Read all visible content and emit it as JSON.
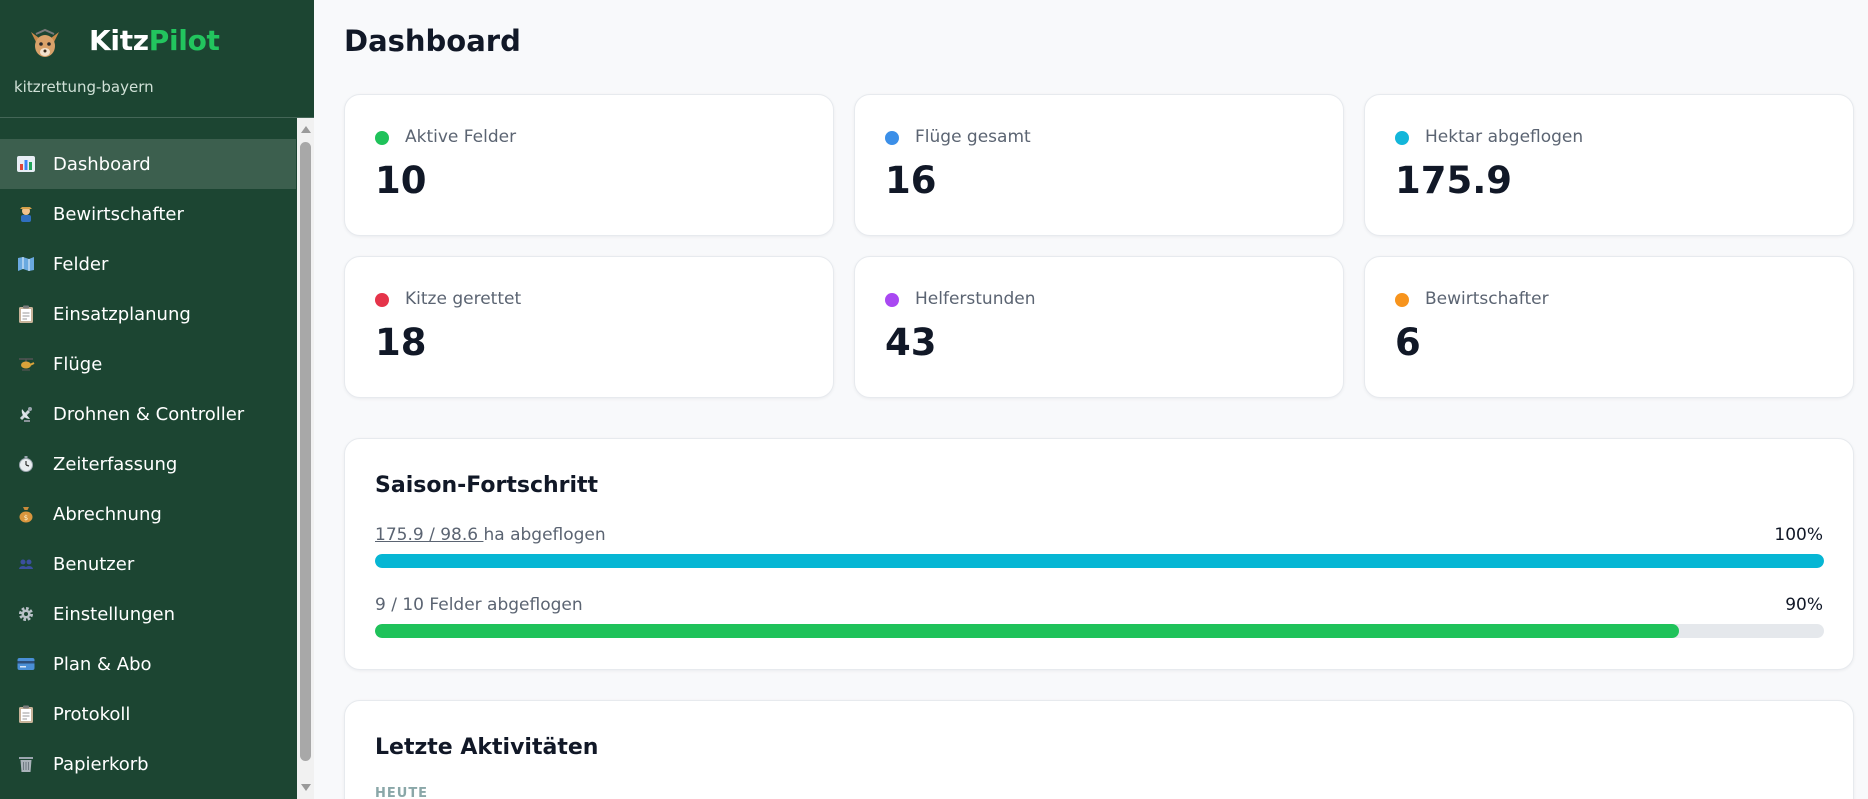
{
  "app": {
    "name_main": "Kitz",
    "name_accent": "Pilot",
    "org": "kitzrettung-bayern"
  },
  "sidebar": {
    "items": [
      {
        "label": "Dashboard",
        "icon": "bar-chart-icon",
        "active": true
      },
      {
        "label": "Bewirtschafter",
        "icon": "farmer-icon"
      },
      {
        "label": "Felder",
        "icon": "map-icon"
      },
      {
        "label": "Einsatzplanung",
        "icon": "clipboard-icon"
      },
      {
        "label": "Flüge",
        "icon": "helicopter-icon"
      },
      {
        "label": "Drohnen & Controller",
        "icon": "satellite-icon"
      },
      {
        "label": "Zeiterfassung",
        "icon": "stopwatch-icon"
      },
      {
        "label": "Abrechnung",
        "icon": "money-bag-icon"
      },
      {
        "label": "Benutzer",
        "icon": "users-icon"
      },
      {
        "label": "Einstellungen",
        "icon": "gear-icon"
      },
      {
        "label": "Plan & Abo",
        "icon": "credit-card-icon"
      },
      {
        "label": "Protokoll",
        "icon": "log-icon"
      },
      {
        "label": "Papierkorb",
        "icon": "trash-icon"
      }
    ]
  },
  "main": {
    "title": "Dashboard",
    "stats": [
      {
        "label": "Aktive Felder",
        "value": "10",
        "color": "#1fc25a"
      },
      {
        "label": "Flüge gesamt",
        "value": "16",
        "color": "#3b8fe8"
      },
      {
        "label": "Hektar abgeflogen",
        "value": "175.9",
        "color": "#13b6da"
      },
      {
        "label": "Kitze gerettet",
        "value": "18",
        "color": "#e5344a"
      },
      {
        "label": "Helferstunden",
        "value": "43",
        "color": "#a948f2"
      },
      {
        "label": "Bewirtschafter",
        "value": "6",
        "color": "#f7941d"
      }
    ],
    "progress": {
      "title": "Saison-Fortschritt",
      "hectare": {
        "link_text": "175.9 / 98.6 ",
        "suffix": "ha abgeflogen",
        "percent_label": "100%",
        "fraction": 1.0,
        "color": "#06b6d4"
      },
      "fields": {
        "text": "9 / 10 Felder abgeflogen",
        "percent_label": "90%",
        "fraction": 0.9,
        "color": "#1fc25a"
      }
    },
    "activity": {
      "title": "Letzte Aktivitäten",
      "section": "HEUTE"
    }
  }
}
